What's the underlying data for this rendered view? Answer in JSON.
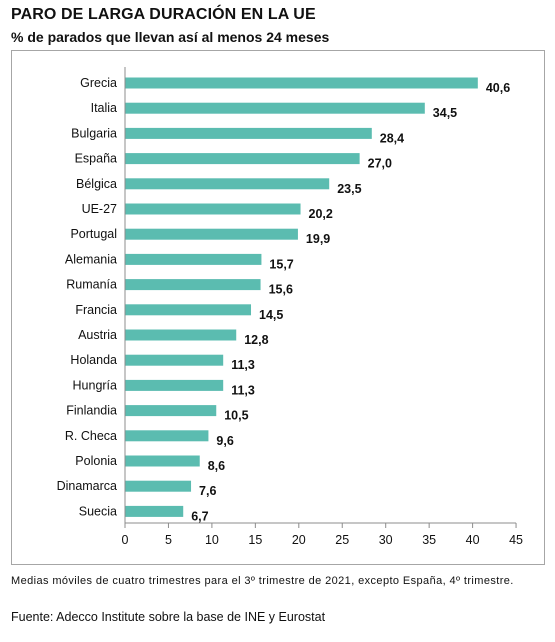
{
  "header": {
    "title": "PARO DE LARGA DURACIÓN EN LA UE",
    "subtitle": "% de parados que llevan así al menos 24 meses"
  },
  "footer": {
    "note": "Medias móviles de cuatro trimestres para el 3º trimestre de 2021, excepto España, 4º trimestre.",
    "source": "Fuente: Adecco Institute sobre la base de INE y Eurostat"
  },
  "chart_data": {
    "type": "bar",
    "orientation": "horizontal",
    "title": "PARO DE LARGA DURACIÓN EN LA UE",
    "subtitle": "% de parados que llevan así al menos 24 meses",
    "categories": [
      "Grecia",
      "Italia",
      "Bulgaria",
      "España",
      "Bélgica",
      "UE-27",
      "Portugal",
      "Alemania",
      "Rumanía",
      "Francia",
      "Austria",
      "Holanda",
      "Hungría",
      "Finlandia",
      "R. Checa",
      "Polonia",
      "Dinamarca",
      "Suecia"
    ],
    "values": [
      40.6,
      34.5,
      28.4,
      27.0,
      23.5,
      20.2,
      19.9,
      15.7,
      15.6,
      14.5,
      12.8,
      11.3,
      11.3,
      10.5,
      9.6,
      8.6,
      7.6,
      6.7
    ],
    "value_labels": [
      "40,6",
      "34,5",
      "28,4",
      "27,0",
      "23,5",
      "20,2",
      "19,9",
      "15,7",
      "15,6",
      "14,5",
      "12,8",
      "11,3",
      "11,3",
      "10,5",
      "9,6",
      "8,6",
      "7,6",
      "6,7"
    ],
    "xticks": [
      0,
      5,
      10,
      15,
      20,
      25,
      30,
      35,
      40,
      45
    ],
    "xlim": [
      0,
      45
    ],
    "grid": false,
    "legend": "none",
    "bar_color": "#5bbcb0"
  }
}
